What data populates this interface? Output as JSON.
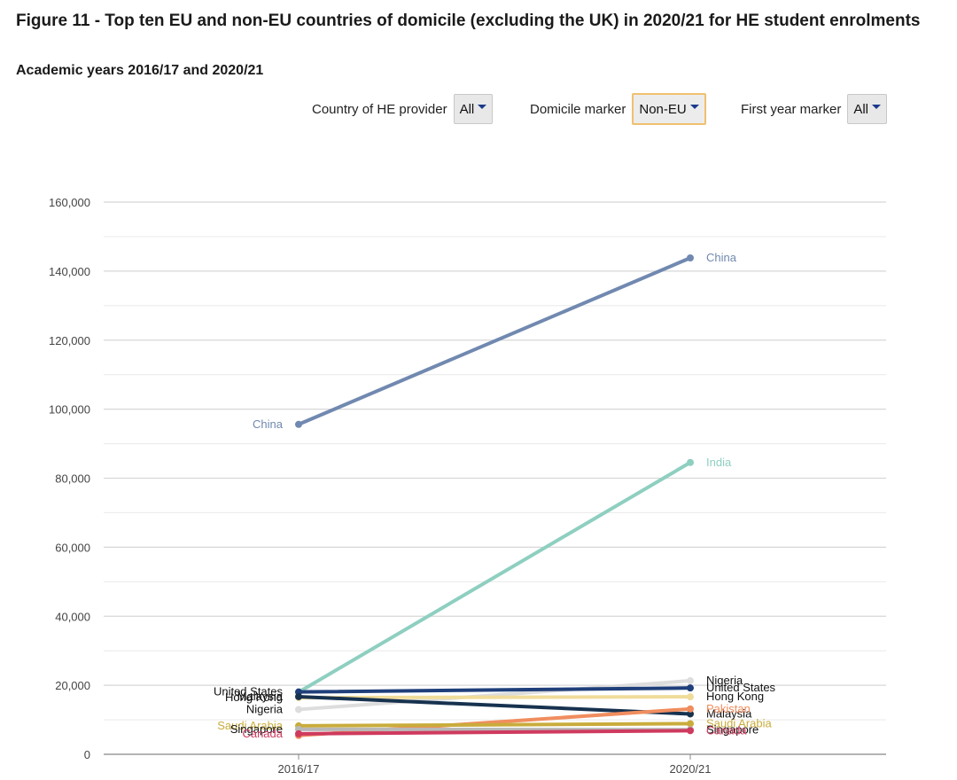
{
  "title": "Figure 11 - Top ten EU and non-EU countries of domicile (excluding the UK) in 2020/21 for HE student enrolments",
  "subtitle": "Academic years 2016/17 and 2020/21",
  "filters": [
    {
      "label": "Country of HE provider",
      "value": "All"
    },
    {
      "label": "Domicile marker",
      "value": "Non-EU"
    },
    {
      "label": "First year marker",
      "value": "All"
    }
  ],
  "chart_data": {
    "type": "line",
    "categories": [
      "2016/17",
      "2020/21"
    ],
    "ylim": [
      0,
      160000
    ],
    "yticks": [
      0,
      20000,
      40000,
      60000,
      80000,
      100000,
      120000,
      140000,
      160000
    ],
    "ytick_labels": [
      "0",
      "20,000",
      "40,000",
      "60,000",
      "80,000",
      "100,000",
      "120,000",
      "140,000",
      "160,000"
    ],
    "series": [
      {
        "name": "China",
        "values": [
          95595,
          143820
        ],
        "color": "#7189b0",
        "left_label": "China",
        "right_label": "China"
      },
      {
        "name": "India",
        "values": [
          18015,
          84555
        ],
        "color": "#8ecfc0",
        "left_label": "",
        "right_label": "India"
      },
      {
        "name": "Nigeria",
        "values": [
          12985,
          21305
        ],
        "color": "#dddddd",
        "left_label": "Nigeria",
        "right_label": "Nigeria"
      },
      {
        "name": "United States",
        "values": [
          18065,
          19220
        ],
        "color": "#1f3f7a",
        "left_label": "United States",
        "right_label": "United States"
      },
      {
        "name": "Hong Kong",
        "values": [
          16415,
          16655
        ],
        "color": "#f0dc9a",
        "left_label": "Hong Kong",
        "right_label": "Hong Kong"
      },
      {
        "name": "Malaysia",
        "values": [
          16700,
          11690
        ],
        "color": "#17324f",
        "left_label": "Malaysia",
        "right_label": "Malaysia"
      },
      {
        "name": "Pakistan",
        "values": [
          5460,
          13145
        ],
        "color": "#f08d5e",
        "left_label": "",
        "right_label": "Pakistan"
      },
      {
        "name": "Saudi Arabia",
        "values": [
          8245,
          8870
        ],
        "color": "#c9ac3c",
        "left_label": "Saudi Arabia",
        "right_label": "Saudi Arabia"
      },
      {
        "name": "Singapore",
        "values": [
          7235,
          7115
        ],
        "color": "#b8b8b8",
        "left_label": "Singapore",
        "right_label": "Singapore"
      },
      {
        "name": "Canada",
        "values": [
          5940,
          6850
        ],
        "color": "#cf3a5e",
        "left_label": "Canada",
        "right_label": "Canada"
      }
    ]
  }
}
